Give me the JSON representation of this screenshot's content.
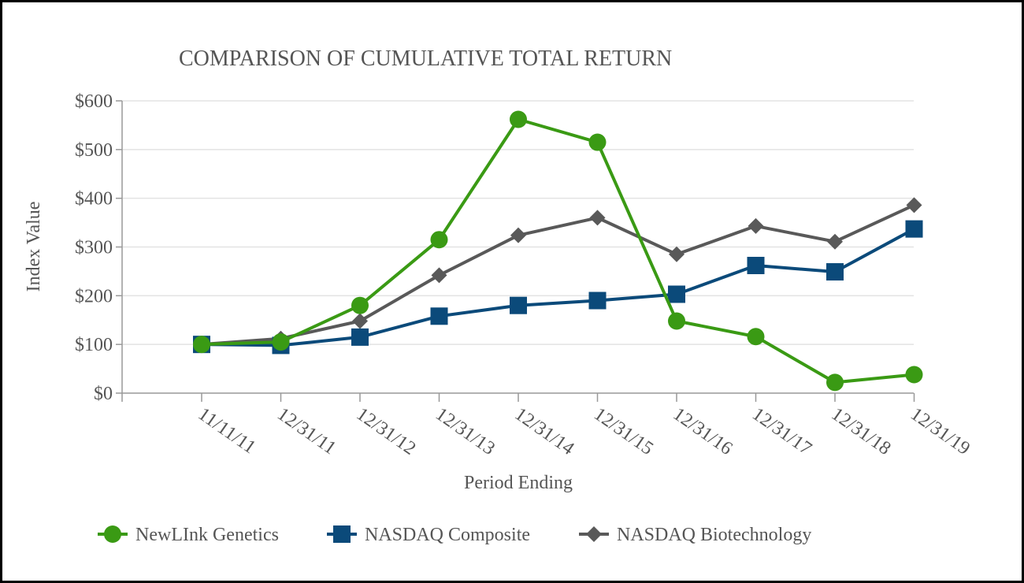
{
  "chart_data": {
    "type": "line",
    "title": "COMPARISON OF CUMULATIVE TOTAL RETURN",
    "xlabel": "Period Ending",
    "ylabel": "Index Value",
    "ylim": [
      0,
      600
    ],
    "yticks": [
      0,
      100,
      200,
      300,
      400,
      500,
      600
    ],
    "ytick_labels": [
      "$0",
      "$100",
      "$200",
      "$300",
      "$400",
      "$500",
      "$600"
    ],
    "categories": [
      "11/11/11",
      "12/31/11",
      "12/31/12",
      "12/31/13",
      "12/31/14",
      "12/31/15",
      "12/31/16",
      "12/31/17",
      "12/31/18",
      "12/31/19"
    ],
    "grid": true,
    "legend_position": "bottom",
    "series": [
      {
        "name": "NewLInk Genetics",
        "color": "#3a9a14",
        "marker": "circle",
        "values": [
          100,
          105,
          180,
          315,
          562,
          515,
          148,
          116,
          22,
          38
        ]
      },
      {
        "name": "NASDAQ Composite",
        "color": "#0b4a7a",
        "marker": "square",
        "values": [
          100,
          98,
          115,
          158,
          180,
          190,
          203,
          262,
          249,
          337
        ]
      },
      {
        "name": "NASDAQ Biotechnology",
        "color": "#595959",
        "marker": "diamond",
        "values": [
          100,
          112,
          148,
          242,
          324,
          360,
          285,
          343,
          311,
          386
        ]
      }
    ]
  }
}
